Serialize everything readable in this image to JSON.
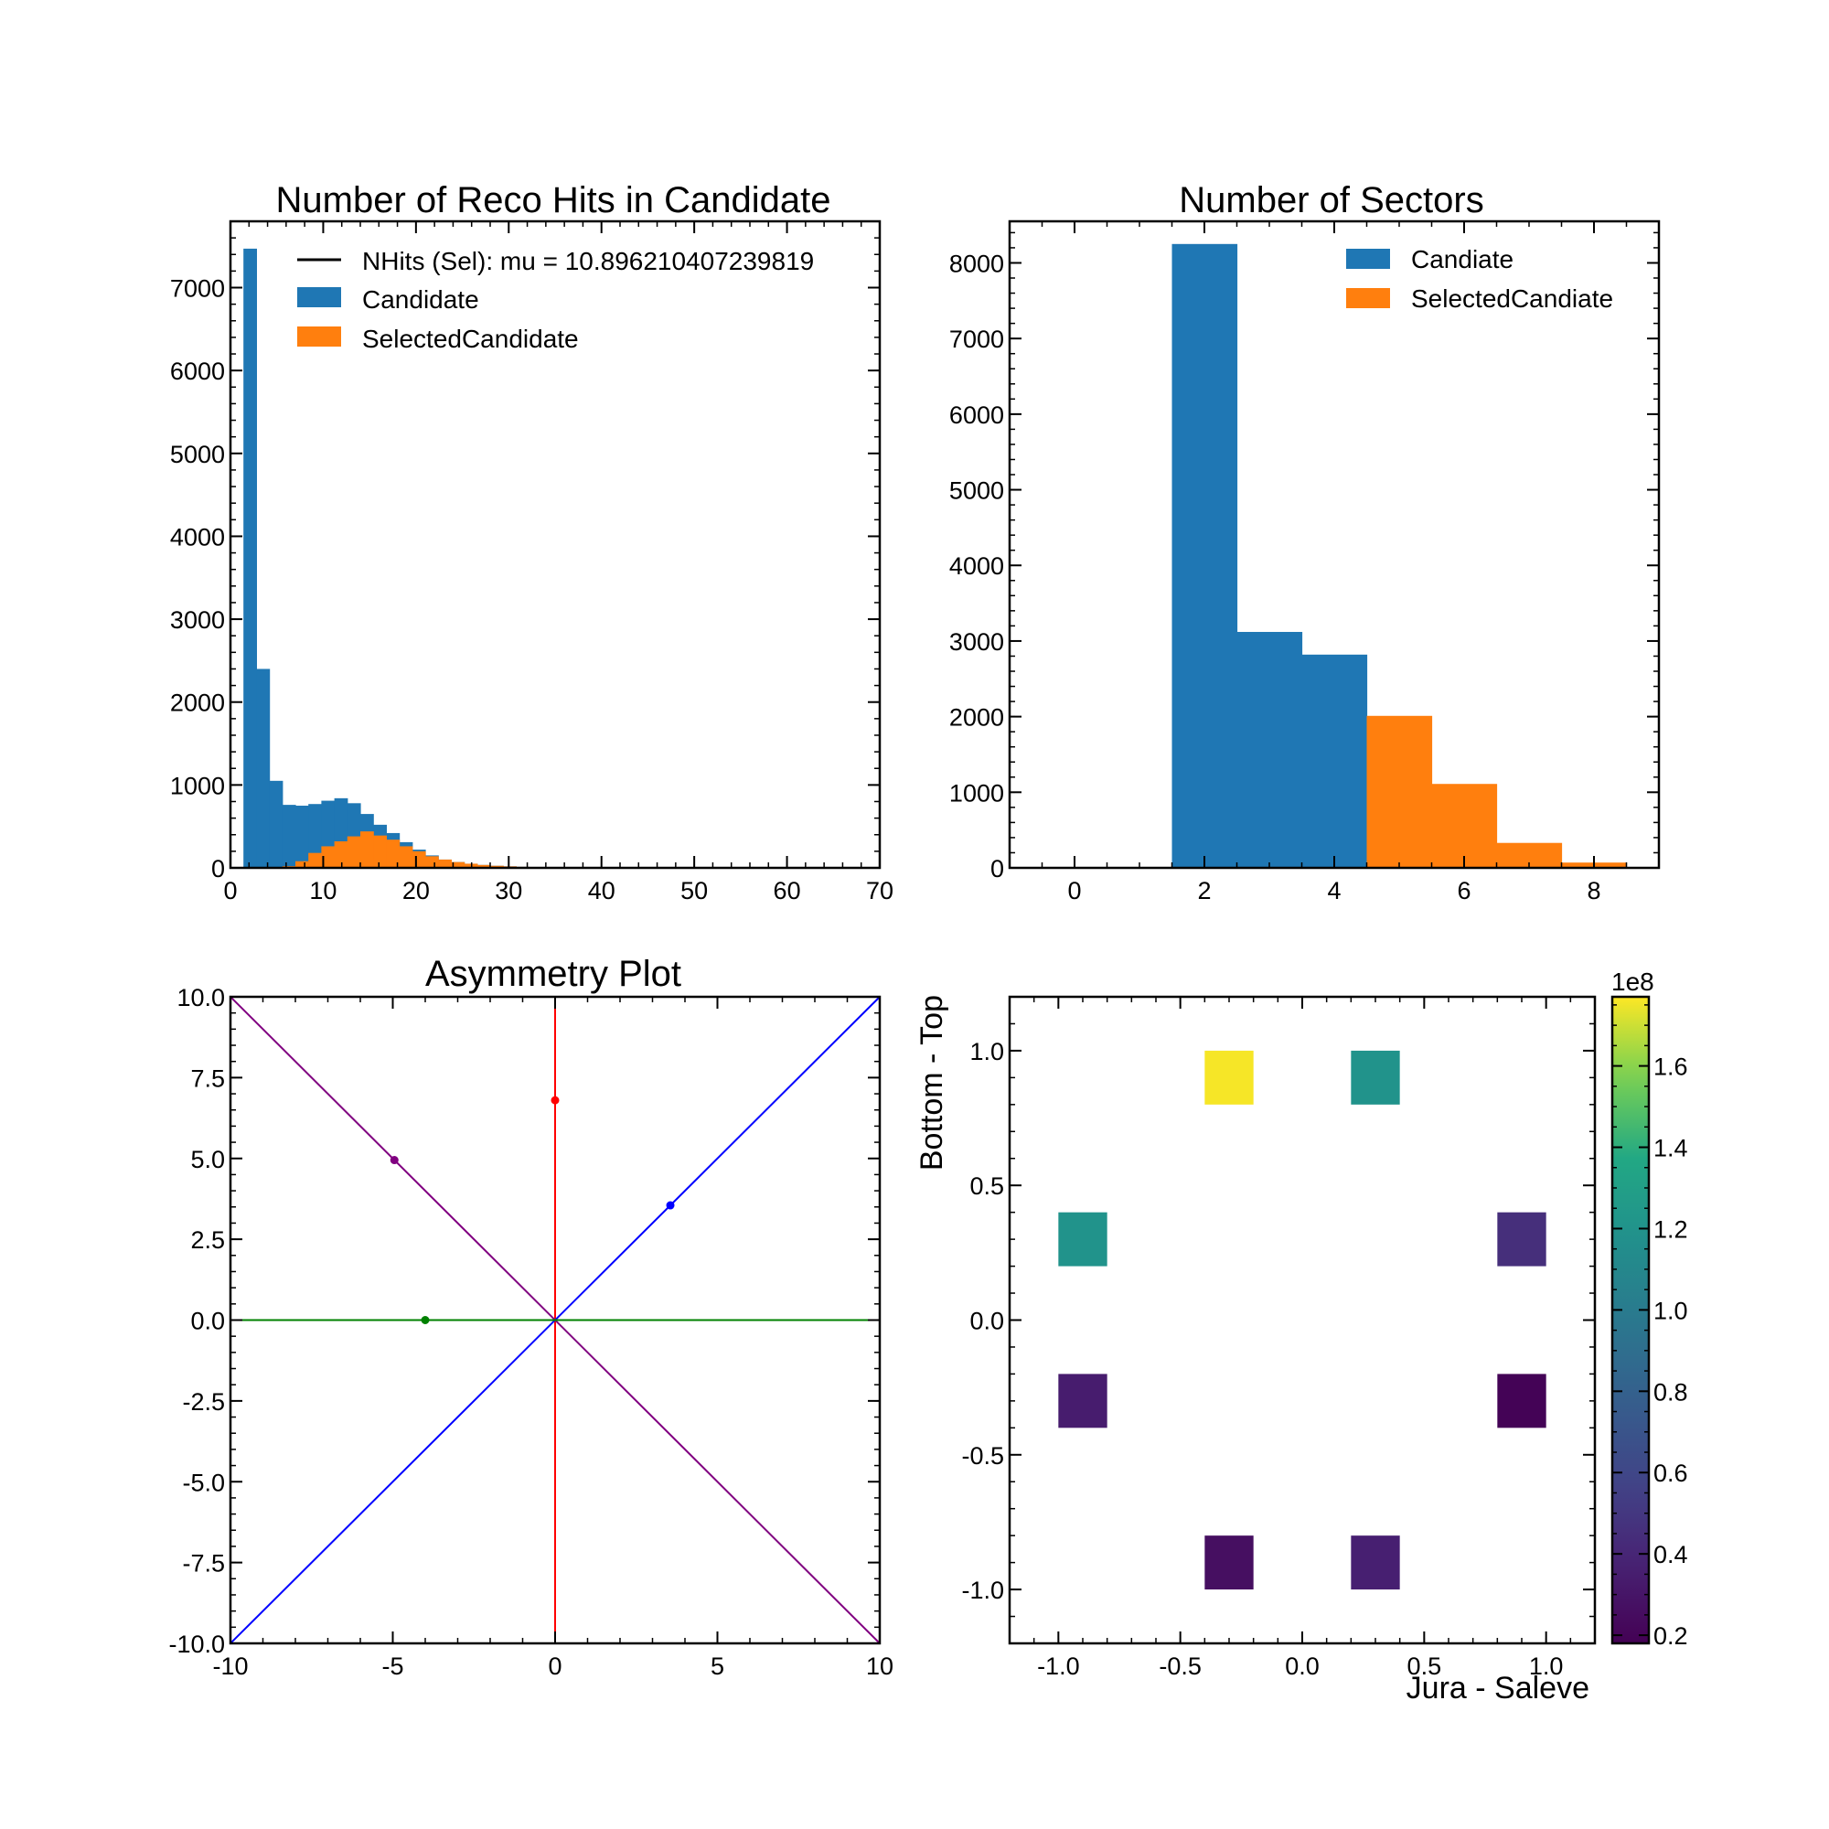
{
  "chart_data": [
    {
      "type": "bar",
      "title": "Number of Reco Hits in Candidate",
      "xlabel": "",
      "ylabel": "",
      "xlim": [
        0,
        70
      ],
      "ylim": [
        0,
        7800
      ],
      "xticks": [
        "0",
        "10",
        "20",
        "30",
        "40",
        "50",
        "60",
        "70"
      ],
      "yticks": [
        "0",
        "1000",
        "2000",
        "3000",
        "4000",
        "5000",
        "6000",
        "7000"
      ],
      "bin_width": 1.4,
      "series": [
        {
          "name": "Candidate",
          "color": "#1f77b4",
          "bins_start": 1.4,
          "values": [
            7470,
            2400,
            1050,
            760,
            750,
            770,
            810,
            840,
            780,
            650,
            520,
            420,
            310,
            220,
            150,
            100,
            70,
            50,
            35,
            25,
            18,
            12,
            8,
            5,
            3
          ]
        },
        {
          "name": "SelectedCandidate",
          "color": "#ff7f0e",
          "bins_start": 1.4,
          "values": [
            0,
            0,
            0,
            20,
            80,
            180,
            260,
            320,
            380,
            440,
            390,
            340,
            260,
            200,
            140,
            100,
            70,
            50,
            35,
            25,
            18,
            12,
            8,
            5,
            3
          ]
        }
      ],
      "legend": {
        "placement": "upper-right",
        "entries": [
          {
            "label": "NHits (Sel): mu = 10.896210407239819",
            "kind": "line",
            "color": "#000000"
          },
          {
            "label": "Candidate",
            "kind": "patch",
            "color": "#1f77b4"
          },
          {
            "label": "SelectedCandidate",
            "kind": "patch",
            "color": "#ff7f0e"
          }
        ]
      }
    },
    {
      "type": "bar",
      "title": "Number of Sectors",
      "xlabel": "",
      "ylabel": "",
      "xlim": [
        -1,
        9
      ],
      "ylim": [
        0,
        8550
      ],
      "xticks": [
        "0",
        "2",
        "4",
        "6",
        "8"
      ],
      "yticks": [
        "0",
        "1000",
        "2000",
        "3000",
        "4000",
        "5000",
        "6000",
        "7000",
        "8000"
      ],
      "series": [
        {
          "name": "Candiate",
          "color": "#1f77b4",
          "bins": [
            [
              1.5,
              2.5,
              8250
            ],
            [
              2.5,
              3.5,
              3120
            ],
            [
              3.5,
              4.5,
              2820
            ]
          ]
        },
        {
          "name": "SelectedCandiate",
          "color": "#ff7f0e",
          "bins": [
            [
              4.5,
              5.5,
              2010
            ],
            [
              5.5,
              6.5,
              1110
            ],
            [
              6.5,
              7.5,
              330
            ],
            [
              7.5,
              8.5,
              70
            ]
          ]
        }
      ],
      "legend": {
        "placement": "upper-right",
        "entries": [
          {
            "label": "Candiate",
            "kind": "patch",
            "color": "#1f77b4"
          },
          {
            "label": "SelectedCandiate",
            "kind": "patch",
            "color": "#ff7f0e"
          }
        ]
      }
    },
    {
      "type": "line",
      "title": "Asymmetry Plot",
      "xlabel": "",
      "ylabel": "",
      "xlim": [
        -10,
        10
      ],
      "ylim": [
        -10,
        10
      ],
      "xticks": [
        "-10",
        "-5",
        "0",
        "5",
        "10"
      ],
      "yticks": [
        "-10.0",
        "-7.5",
        "-5.0",
        "-2.5",
        "0.0",
        "2.5",
        "5.0",
        "7.5",
        "10.0"
      ],
      "lines": [
        {
          "color": "#ff0000",
          "x": [
            0,
            0
          ],
          "y": [
            -10,
            10
          ],
          "point": [
            0,
            6.8
          ]
        },
        {
          "color": "#0000ff",
          "x": [
            -10,
            10
          ],
          "y": [
            -10,
            10
          ],
          "point": [
            3.55,
            3.55
          ]
        },
        {
          "color": "#800080",
          "x": [
            -10,
            10
          ],
          "y": [
            10,
            -10
          ],
          "point": [
            -4.95,
            4.95
          ]
        },
        {
          "color": "#008000",
          "x": [
            -10,
            10
          ],
          "y": [
            0,
            0
          ],
          "point": [
            -4.0,
            0
          ]
        }
      ]
    },
    {
      "type": "heatmap",
      "title": "",
      "xlabel": "Jura - Saleve",
      "ylabel": "Bottom - Top",
      "xlim": [
        -1.2,
        1.2
      ],
      "ylim": [
        -1.2,
        1.2
      ],
      "xticks": [
        "-1.0",
        "-0.5",
        "0.0",
        "0.5",
        "1.0"
      ],
      "yticks": [
        "-1.0",
        "-0.5",
        "0.0",
        "0.5",
        "1.0"
      ],
      "cell_size": 0.2,
      "cells": [
        {
          "x": -0.3,
          "y": 0.9,
          "value": 1.76
        },
        {
          "x": 0.3,
          "y": 0.9,
          "value": 1.2
        },
        {
          "x": -0.9,
          "y": 0.3,
          "value": 1.2
        },
        {
          "x": 0.9,
          "y": 0.3,
          "value": 0.45
        },
        {
          "x": -0.9,
          "y": -0.3,
          "value": 0.34
        },
        {
          "x": 0.9,
          "y": -0.3,
          "value": 0.19
        },
        {
          "x": -0.3,
          "y": -0.9,
          "value": 0.26
        },
        {
          "x": 0.3,
          "y": -0.9,
          "value": 0.36
        }
      ],
      "colorbar": {
        "colormap": "viridis",
        "range": [
          0.18,
          1.77
        ],
        "offset_label": "1e8",
        "ticks": [
          "0.2",
          "0.4",
          "0.6",
          "0.8",
          "1.0",
          "1.2",
          "1.4",
          "1.6"
        ]
      }
    }
  ]
}
